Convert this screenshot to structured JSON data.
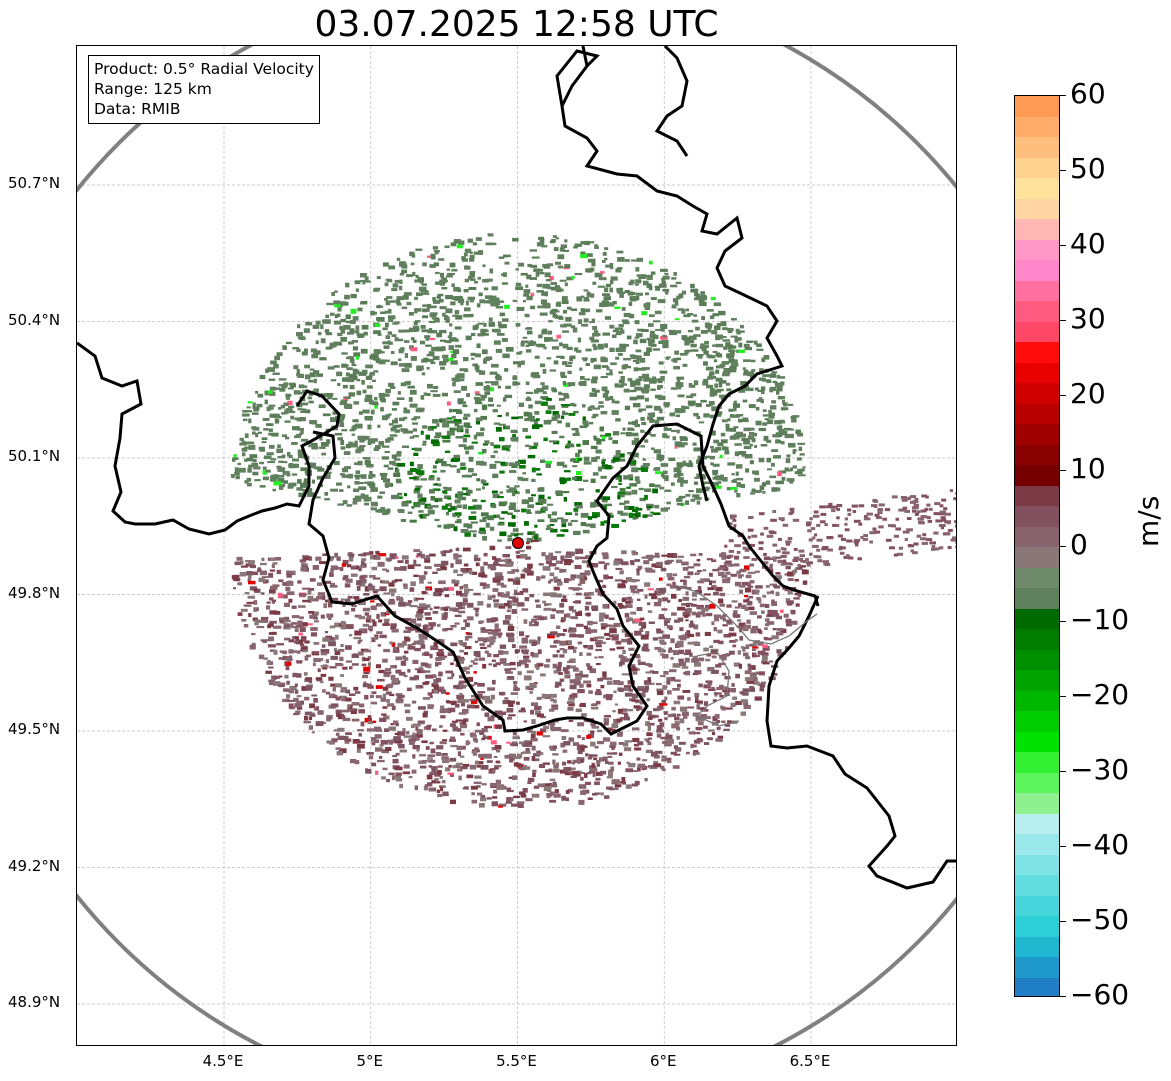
{
  "title": "03.07.2025 12:58 UTC",
  "info": {
    "product": "Product: 0.5° Radial Velocity",
    "range": "Range: 125 km",
    "data": "Data: RMIB"
  },
  "lat_labels": [
    "50.7°N",
    "50.4°N",
    "50.1°N",
    "49.8°N",
    "49.5°N",
    "49.2°N",
    "48.9°N"
  ],
  "lon_labels": [
    "4.5°E",
    "5°E",
    "5.5°E",
    "6°E",
    "6.5°E"
  ],
  "colorbar": {
    "unit": "m/s",
    "vmin": -60,
    "vmax": 60,
    "tick_labels": [
      "60",
      "50",
      "40",
      "30",
      "20",
      "10",
      "0",
      "−10",
      "−20",
      "−30",
      "−40",
      "−50",
      "−60"
    ],
    "colors_top_to_bottom": [
      "#ff9a55",
      "#ffac6a",
      "#ffbf7c",
      "#ffd28f",
      "#ffe39c",
      "#ffd6a3",
      "#ffb7b4",
      "#ff98c6",
      "#ff86c8",
      "#ff6fa0",
      "#ff5a80",
      "#ff4768",
      "#ff0c0c",
      "#e80000",
      "#d00000",
      "#b80000",
      "#a00000",
      "#880000",
      "#760000",
      "#7b3a45",
      "#82505e",
      "#87646e",
      "#8a7878",
      "#6e8a6a",
      "#5e805c",
      "#006a00",
      "#007d00",
      "#008f00",
      "#00a300",
      "#00b700",
      "#00cc00",
      "#00e100",
      "#33f033",
      "#5df55d",
      "#8ff08f",
      "#b8eeef",
      "#9ae8ea",
      "#7fe2e5",
      "#62dde0",
      "#46d6db",
      "#2cd0d6",
      "#1fb8d0",
      "#1f98cb",
      "#1f7ec4"
    ]
  },
  "chart_data": {
    "type": "map",
    "title": "03.07.2025 12:58 UTC",
    "product": "0.5° Radial Velocity",
    "range_km": 125,
    "source": "RMIB",
    "radar_site": {
      "lon": 5.5,
      "lat": 49.91
    },
    "extent": {
      "lon_min": 4.0,
      "lon_max": 7.0,
      "lat_min": 48.8,
      "lat_max": 51.0
    },
    "lat_ticks": [
      50.7,
      50.4,
      50.1,
      49.8,
      49.5,
      49.2,
      48.9
    ],
    "lon_ticks": [
      4.5,
      5.0,
      5.5,
      6.0,
      6.5
    ],
    "colorbar_range": [
      -60,
      60
    ],
    "colorbar_label": "m/s"
  }
}
